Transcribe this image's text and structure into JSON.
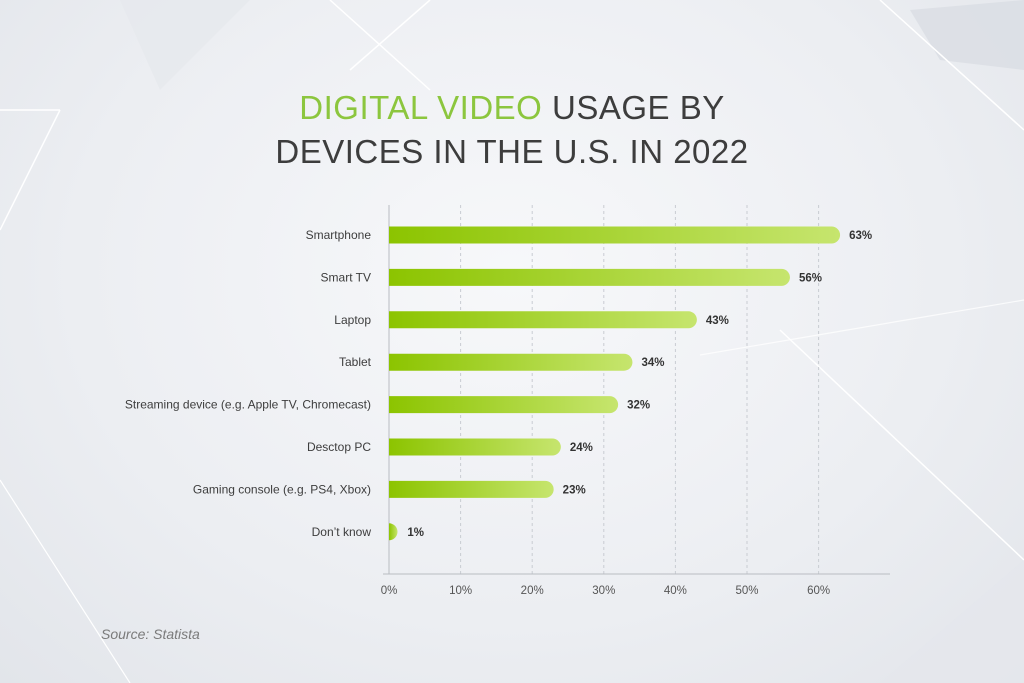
{
  "title": {
    "accent": "DIGITAL VIDEO",
    "line1_rest": " USAGE BY",
    "line2": "DEVICES IN THE U.S. IN 2022"
  },
  "source": "Source: Statista",
  "colors": {
    "bar_start": "#8cc400",
    "bar_end": "#c6e56e",
    "title_accent": "#8cc63e",
    "text": "#3d3d3d"
  },
  "chart_data": {
    "type": "bar",
    "orientation": "horizontal",
    "categories": [
      "Smartphone",
      "Smart TV",
      "Laptop",
      "Tablet",
      "Streaming device (e.g. Apple TV, Chromecast)",
      "Desctop PC",
      "Gaming console (e.g. PS4, Xbox)",
      "Don’t know"
    ],
    "values": [
      63,
      56,
      43,
      34,
      32,
      24,
      23,
      1
    ],
    "data_labels": [
      "63%",
      "56%",
      "43%",
      "34%",
      "32%",
      "24%",
      "23%",
      "1%"
    ],
    "x_ticks": [
      "0%",
      "10%",
      "20%",
      "30%",
      "40%",
      "50%",
      "60%"
    ],
    "xlim": [
      0,
      70
    ],
    "grid": "vertical-dashed"
  }
}
